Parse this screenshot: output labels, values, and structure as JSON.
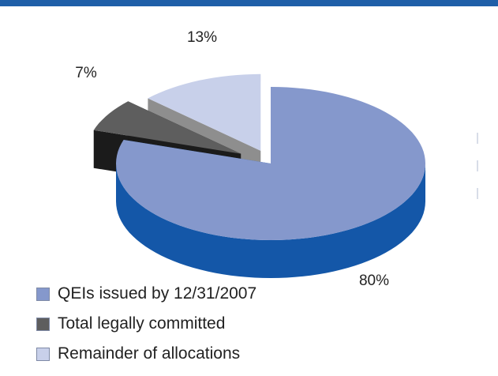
{
  "chart_data": {
    "type": "pie",
    "title": "",
    "slices": [
      {
        "label": "QEIs issued by 12/31/2007",
        "value": 80,
        "value_label": "80%",
        "color": "#8598cc",
        "side_color": "#1457a8"
      },
      {
        "label": "Total legally committed",
        "value": 7,
        "value_label": "7%",
        "color": "#5e5e5e",
        "side_color": "#1b1b1b"
      },
      {
        "label": "Remainder of allocations",
        "value": 13,
        "value_label": "13%",
        "color": "#c8d0ea",
        "side_color": "#8e8e8e"
      }
    ],
    "legend_position": "bottom-left",
    "style": "3d-exploded"
  },
  "colors": {
    "top_bar": "#1f5fa8"
  }
}
